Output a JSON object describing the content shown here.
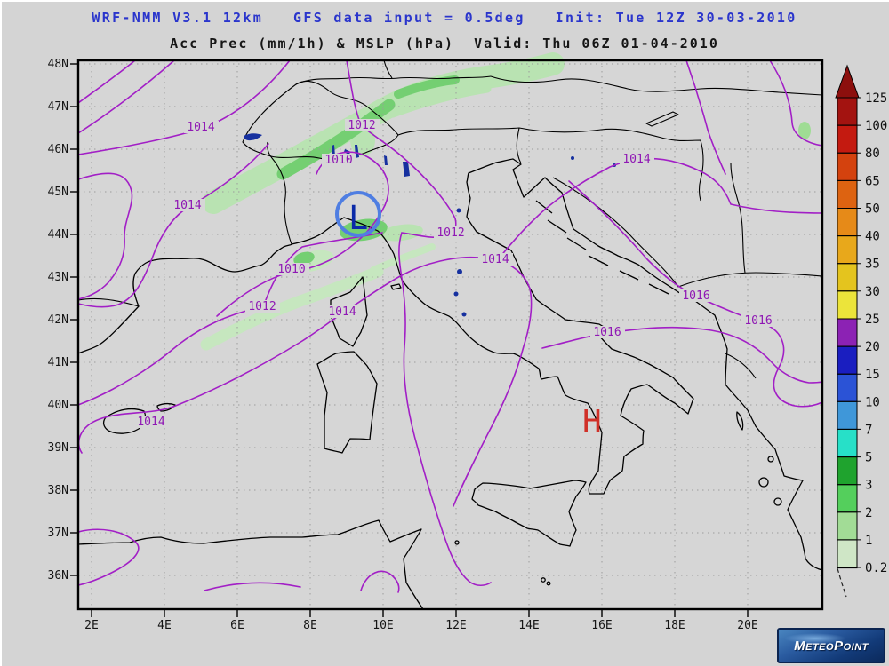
{
  "header": {
    "model_line": "WRF-NMM V3.1 12km   GFS data input = 0.5deg   Init: Tue 12Z 30-03-2010",
    "field_line": "Acc Prec (mm/1h) & MSLP (hPa)  Valid: Thu 06Z 01-04-2010"
  },
  "axes": {
    "lat_labels": [
      "48N",
      "47N",
      "46N",
      "45N",
      "44N",
      "43N",
      "42N",
      "41N",
      "40N",
      "39N",
      "38N",
      "37N",
      "36N"
    ],
    "lon_labels": [
      "2E",
      "4E",
      "6E",
      "8E",
      "10E",
      "12E",
      "14E",
      "16E",
      "18E",
      "20E"
    ]
  },
  "colorbar": {
    "values_top_to_bottom": [
      "125",
      "100",
      "80",
      "65",
      "50",
      "40",
      "35",
      "30",
      "25",
      "20",
      "15",
      "10",
      "7",
      "5",
      "3",
      "2",
      "1",
      "0.2"
    ],
    "segment_colors_top_to_bottom": [
      "#a31310",
      "#c41a10",
      "#d4420e",
      "#dd6311",
      "#e68a18",
      "#e8a81b",
      "#e4c41e",
      "#ece43a",
      "#8c22b4",
      "#1a1ec0",
      "#2b53d6",
      "#3f97d9",
      "#27e0c8",
      "#1fa32e",
      "#54cf5c",
      "#a2dc96",
      "#cfe6c6"
    ],
    "arrow_color": "#8c0f0d"
  },
  "map": {
    "isobar_labels": [
      {
        "text": "1014"
      },
      {
        "text": "1012"
      },
      {
        "text": "1010"
      },
      {
        "text": "1014"
      },
      {
        "text": "1010"
      },
      {
        "text": "1012"
      },
      {
        "text": "1014"
      },
      {
        "text": "1014"
      },
      {
        "text": "1014"
      },
      {
        "text": "1012"
      },
      {
        "text": "1014"
      },
      {
        "text": "1016"
      },
      {
        "text": "1016"
      },
      {
        "text": "1016"
      }
    ],
    "low_marker": "L",
    "high_marker": "H"
  },
  "colors": {
    "title": "#2a35cc",
    "subtitle": "#161616",
    "isobar": "#a21fc6",
    "precip_light": "#b9e3b2",
    "precip_medium": "#74cf72",
    "precip_pale": "#c6e7bf",
    "low_circle": "#4f7ee2",
    "low_marker": "#0b2aa8",
    "high_marker": "#d03028",
    "lake": "#16309f",
    "grid": "#9c9c9c",
    "background": "#d4d4d4"
  },
  "logo": {
    "name_part1": "Meteo",
    "name_part2": "Point"
  }
}
